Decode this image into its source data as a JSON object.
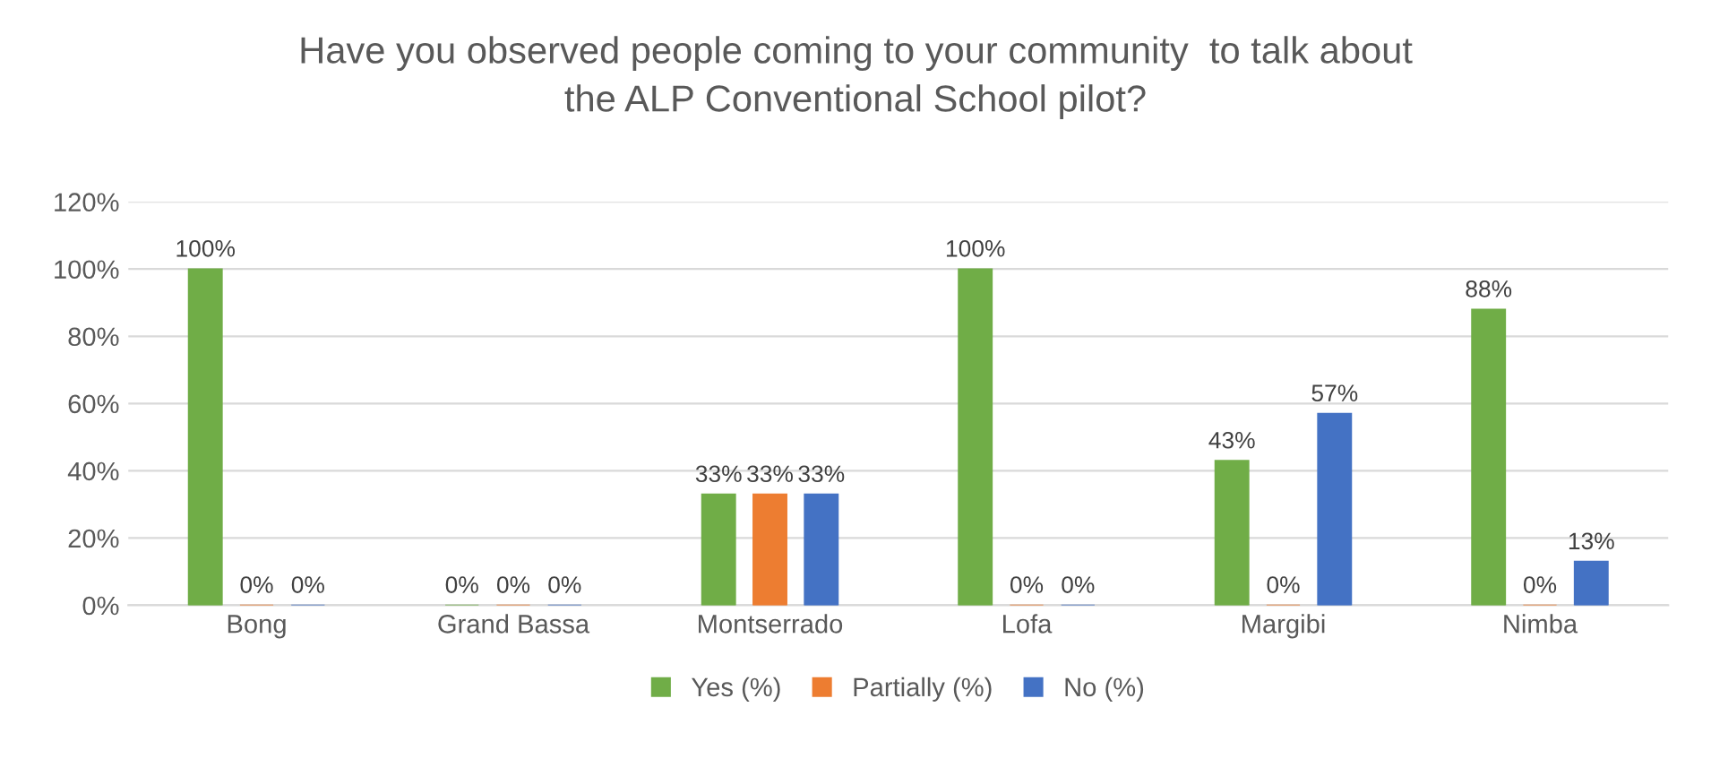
{
  "chart_data": {
    "type": "bar",
    "title": "Have you observed people coming to your community  to talk about\nthe ALP Conventional School pilot?",
    "categories": [
      "Bong",
      "Grand Bassa",
      "Montserrado",
      "Lofa",
      "Margibi",
      "Nimba"
    ],
    "series": [
      {
        "name": "Yes (%)",
        "color": "#70ad47",
        "values": [
          100,
          0,
          33,
          100,
          43,
          88
        ],
        "value_labels": [
          "100%",
          "0%",
          "33%",
          "100%",
          "43%",
          "88%"
        ]
      },
      {
        "name": "Partially (%)",
        "color": "#ed7d31",
        "values": [
          0,
          0,
          33,
          0,
          0,
          0
        ],
        "value_labels": [
          "0%",
          "0%",
          "33%",
          "0%",
          "0%",
          "0%"
        ]
      },
      {
        "name": "No (%)",
        "color": "#4472c4",
        "values": [
          0,
          0,
          33,
          0,
          57,
          13
        ],
        "value_labels": [
          "0%",
          "0%",
          "33%",
          "0%",
          "57%",
          "13%"
        ]
      }
    ],
    "ylim": [
      0,
      120
    ],
    "yticks": [
      {
        "value": 0,
        "label": "0%"
      },
      {
        "value": 20,
        "label": "20%"
      },
      {
        "value": 40,
        "label": "40%"
      },
      {
        "value": 60,
        "label": "60%"
      },
      {
        "value": 80,
        "label": "80%"
      },
      {
        "value": 100,
        "label": "100%"
      },
      {
        "value": 120,
        "label": "120%"
      }
    ],
    "grid": "y",
    "legend": "bottom"
  }
}
